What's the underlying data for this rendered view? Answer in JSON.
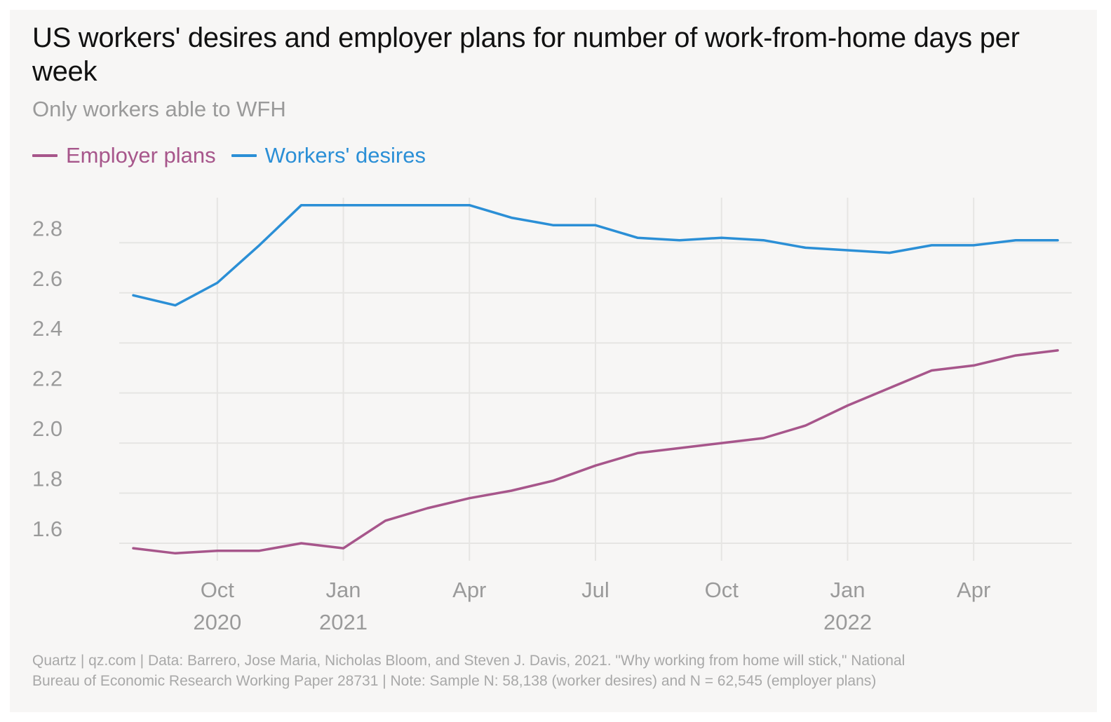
{
  "chart_data": {
    "type": "line",
    "title": "US workers' desires and employer plans for number of work-from-home days per week",
    "subtitle": "Only workers able to WFH",
    "xlabel": "",
    "ylabel": "",
    "ylim": [
      1.53,
      2.98
    ],
    "yticks": [
      1.6,
      1.8,
      2.0,
      2.2,
      2.4,
      2.6,
      2.8
    ],
    "ytick_labels": [
      "1.6",
      "1.8",
      "2.0",
      "2.2",
      "2.4",
      "2.6",
      "2.8"
    ],
    "x": [
      "2020-08",
      "2020-09",
      "2020-10",
      "2020-11",
      "2020-12",
      "2021-01",
      "2021-02",
      "2021-03",
      "2021-04",
      "2021-05",
      "2021-06",
      "2021-07",
      "2021-08",
      "2021-09",
      "2021-10",
      "2021-11",
      "2021-12",
      "2022-01",
      "2022-02",
      "2022-03",
      "2022-04",
      "2022-05",
      "2022-06"
    ],
    "x_index_range": [
      0,
      22
    ],
    "xticks": [
      {
        "index": 2,
        "month": "Oct",
        "year": "2020"
      },
      {
        "index": 5,
        "month": "Jan",
        "year": "2021"
      },
      {
        "index": 8,
        "month": "Apr",
        "year": ""
      },
      {
        "index": 11,
        "month": "Jul",
        "year": ""
      },
      {
        "index": 14,
        "month": "Oct",
        "year": ""
      },
      {
        "index": 17,
        "month": "Jan",
        "year": "2022"
      },
      {
        "index": 20,
        "month": "Apr",
        "year": ""
      }
    ],
    "grid": true,
    "legend_position": "top-left",
    "series": [
      {
        "name": "Employer plans",
        "color": "#a7568b",
        "values": [
          1.58,
          1.56,
          1.57,
          1.57,
          1.6,
          1.58,
          1.69,
          1.74,
          1.78,
          1.81,
          1.85,
          1.91,
          1.96,
          1.98,
          2.0,
          2.02,
          2.07,
          2.15,
          2.22,
          2.29,
          2.31,
          2.35,
          2.37
        ]
      },
      {
        "name": "Workers' desires",
        "color": "#2b8fd6",
        "values": [
          2.59,
          2.55,
          2.64,
          2.79,
          2.95,
          2.95,
          2.95,
          2.95,
          2.95,
          2.9,
          2.87,
          2.87,
          2.82,
          2.81,
          2.82,
          2.81,
          2.78,
          2.77,
          2.76,
          2.79,
          2.79,
          2.81,
          2.81
        ]
      }
    ]
  },
  "footer": {
    "line1": "Quartz | qz.com | Data: Barrero, Jose Maria, Nicholas Bloom, and Steven J. Davis, 2021. \"Why working from home will stick,\" National",
    "line2": "Bureau of Economic Research Working Paper 28731 | Note: Sample N: 58,138 (worker desires) and N = 62,545 (employer plans)"
  },
  "colors": {
    "background": "#f7f6f5",
    "grid": "#e6e5e3",
    "tick_text": "#9a9a9a"
  }
}
